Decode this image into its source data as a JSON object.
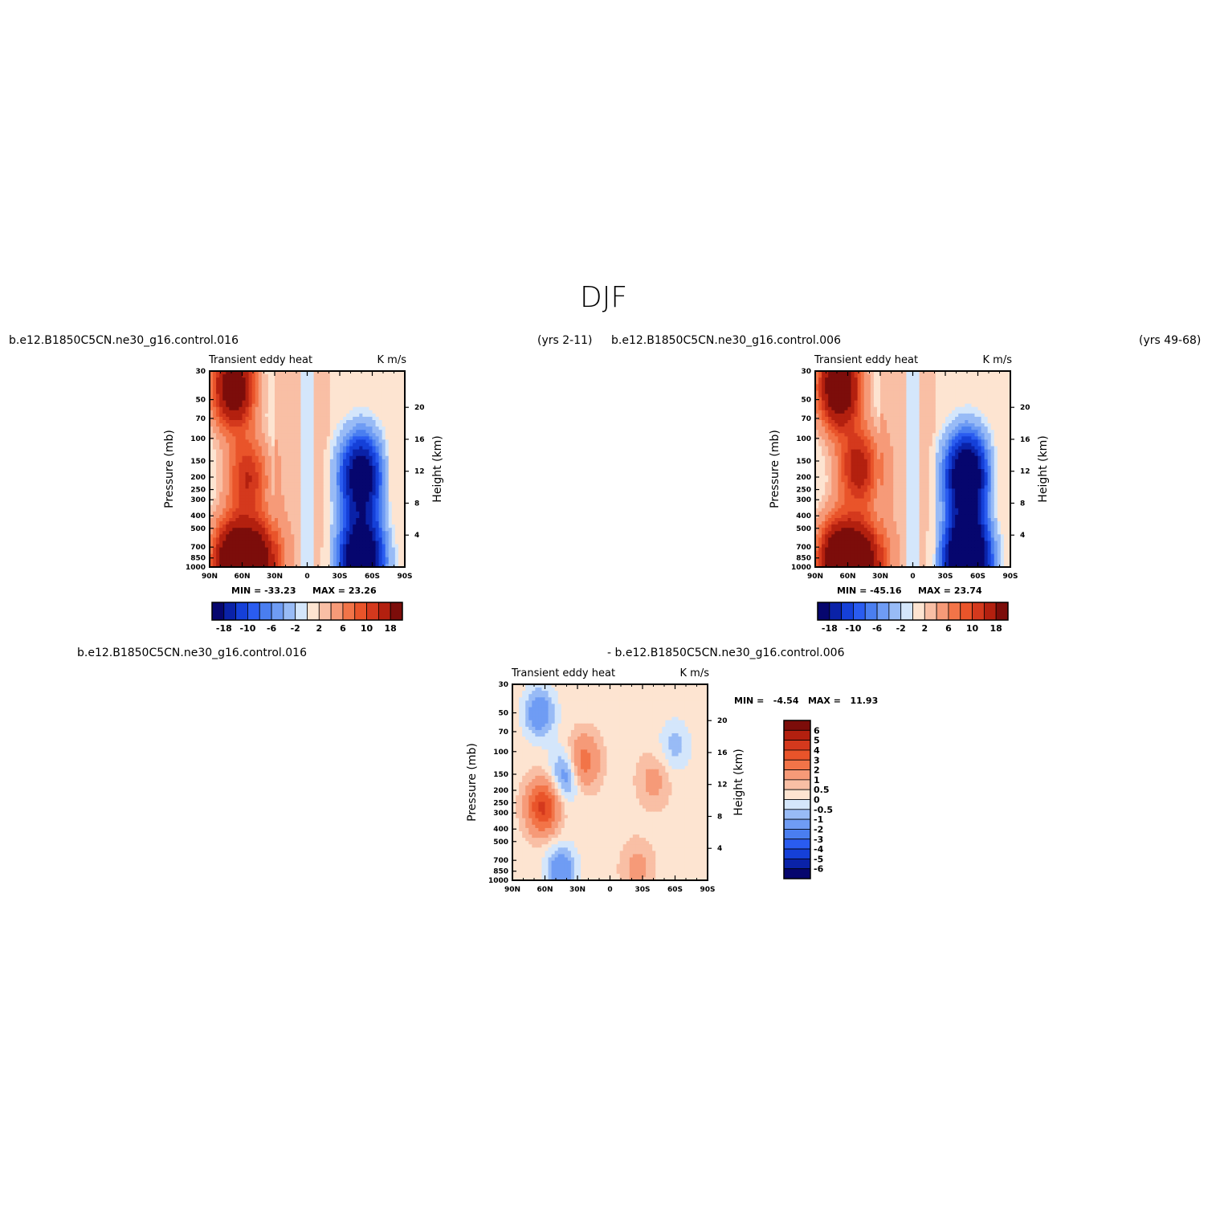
{
  "figure": {
    "title": "DJF",
    "top_left_run": "b.e12.B1850C5CN.ne30_g16.control.016",
    "top_left_years": "(yrs 2-11)",
    "top_right_run": "b.e12.B1850C5CN.ne30_g16.control.006",
    "top_right_years": "(yrs 49-68)",
    "diff_label_left": "b.e12.B1850C5CN.ne30_g16.control.016",
    "diff_label_right": "- b.e12.B1850C5CN.ne30_g16.control.006"
  },
  "chart_data": [
    {
      "id": "panel-016",
      "type": "heatmap",
      "title": "Transient eddy heat",
      "units": "K m/s",
      "ylabel": "Pressure (mb)",
      "y2label": "Height (km)",
      "min_text": "MIN = -33.23",
      "max_text": "MAX = 23.26",
      "x_ticks": [
        "90N",
        "60N",
        "30N",
        "0",
        "30S",
        "60S",
        "90S"
      ],
      "x_values": [
        90,
        60,
        30,
        0,
        -30,
        -60,
        -90
      ],
      "y_ticks": [
        "30",
        "50",
        "70",
        "100",
        "150",
        "200",
        "250",
        "300",
        "400",
        "500",
        "700",
        "850",
        "1000"
      ],
      "y_values": [
        30,
        50,
        70,
        100,
        150,
        200,
        250,
        300,
        400,
        500,
        700,
        850,
        1000
      ],
      "y2_ticks": [
        "20",
        "16",
        "12",
        "8",
        "4"
      ],
      "contour_levels": [
        -18,
        -14,
        -10,
        -8,
        -6,
        -4,
        -2,
        -1,
        1,
        2,
        4,
        6,
        8,
        10,
        14,
        18
      ],
      "colorbar_labels": [
        "-18",
        "-10",
        "-6",
        "-2",
        "2",
        "6",
        "10",
        "18"
      ],
      "features": [
        {
          "lat": 68,
          "p": 40,
          "value": 20
        },
        {
          "lat": 68,
          "p": 920,
          "value": 23
        },
        {
          "lat": 45,
          "p": 930,
          "value": 18
        },
        {
          "lat": 55,
          "p": 200,
          "value": 10
        },
        {
          "lat": -50,
          "p": 200,
          "value": -25
        },
        {
          "lat": -50,
          "p": 880,
          "value": -33
        },
        {
          "lat": -75,
          "p": 200,
          "value": 2
        }
      ]
    },
    {
      "id": "panel-006",
      "type": "heatmap",
      "title": "Transient eddy heat",
      "units": "K m/s",
      "ylabel": "Pressure (mb)",
      "y2label": "Height (km)",
      "min_text": "MIN = -45.16",
      "max_text": "MAX = 23.74",
      "x_ticks": [
        "90N",
        "60N",
        "30N",
        "0",
        "30S",
        "60S",
        "90S"
      ],
      "x_values": [
        90,
        60,
        30,
        0,
        -30,
        -60,
        -90
      ],
      "y_ticks": [
        "30",
        "50",
        "70",
        "100",
        "150",
        "200",
        "250",
        "300",
        "400",
        "500",
        "700",
        "850",
        "1000"
      ],
      "y_values": [
        30,
        50,
        70,
        100,
        150,
        200,
        250,
        300,
        400,
        500,
        700,
        850,
        1000
      ],
      "y2_ticks": [
        "20",
        "16",
        "12",
        "8",
        "4"
      ],
      "contour_levels": [
        -18,
        -14,
        -10,
        -8,
        -6,
        -4,
        -2,
        -1,
        1,
        2,
        4,
        6,
        8,
        10,
        14,
        18
      ],
      "colorbar_labels": [
        "-18",
        "-10",
        "-6",
        "-2",
        "2",
        "6",
        "10",
        "18"
      ],
      "features": [
        {
          "lat": 68,
          "p": 40,
          "value": 22
        },
        {
          "lat": 68,
          "p": 920,
          "value": 24
        },
        {
          "lat": 45,
          "p": 930,
          "value": 17
        },
        {
          "lat": 50,
          "p": 170,
          "value": 12
        },
        {
          "lat": -50,
          "p": 200,
          "value": -30
        },
        {
          "lat": -50,
          "p": 880,
          "value": -45
        },
        {
          "lat": -75,
          "p": 220,
          "value": 2
        }
      ]
    },
    {
      "id": "panel-diff",
      "type": "heatmap",
      "title": "Transient eddy heat",
      "units": "K m/s",
      "ylabel": "Pressure (mb)",
      "y2label": "Height (km)",
      "min_text": "MIN =   -4.54   MAX =   11.93",
      "x_ticks": [
        "90N",
        "60N",
        "30N",
        "0",
        "30S",
        "60S",
        "90S"
      ],
      "x_values": [
        90,
        60,
        30,
        0,
        -30,
        -60,
        -90
      ],
      "y_ticks": [
        "30",
        "50",
        "70",
        "100",
        "150",
        "200",
        "250",
        "300",
        "400",
        "500",
        "700",
        "850",
        "1000"
      ],
      "y_values": [
        30,
        50,
        70,
        100,
        150,
        200,
        250,
        300,
        400,
        500,
        700,
        850,
        1000
      ],
      "y2_ticks": [
        "20",
        "16",
        "12",
        "8",
        "4"
      ],
      "contour_levels": [
        -6,
        -5,
        -4,
        -3,
        -2,
        -1,
        -0.5,
        0,
        0.5,
        1,
        2,
        3,
        4,
        5,
        6
      ],
      "colorbar_labels": [
        "6",
        "5",
        "4",
        "3",
        "2",
        "1",
        "0.5",
        "0",
        "-0.5",
        "-1",
        "-2",
        "-3",
        "-4",
        "-5",
        "-6"
      ],
      "features": [
        {
          "lat": 65,
          "p": 50,
          "value": -2
        },
        {
          "lat": 40,
          "p": 150,
          "value": -2
        },
        {
          "lat": 62,
          "p": 270,
          "value": 4
        },
        {
          "lat": 25,
          "p": 120,
          "value": 2.5
        },
        {
          "lat": -40,
          "p": 170,
          "value": 1
        },
        {
          "lat": 45,
          "p": 850,
          "value": -2
        },
        {
          "lat": -60,
          "p": 90,
          "value": -1
        },
        {
          "lat": -25,
          "p": 800,
          "value": 1
        }
      ]
    }
  ],
  "colors": {
    "full_palette": [
      "#06066e",
      "#0a22a8",
      "#1540d8",
      "#2a5cf0",
      "#4a7ef0",
      "#6f9cf4",
      "#98bbf6",
      "#d4e6fb",
      "#fde4d1",
      "#f9bfa5",
      "#f69a78",
      "#f27448",
      "#e9542a",
      "#d4391d",
      "#b3200f",
      "#7c0d0a"
    ],
    "diff_palette": [
      "#7c0d0a",
      "#b3200f",
      "#d4391d",
      "#e9542a",
      "#f27448",
      "#f69a78",
      "#f9bfa5",
      "#fde4d1",
      "#d4e6fb",
      "#98bbf6",
      "#6f9cf4",
      "#4a7ef0",
      "#2a5cf0",
      "#1540d8",
      "#0a22a8",
      "#06066e"
    ]
  }
}
